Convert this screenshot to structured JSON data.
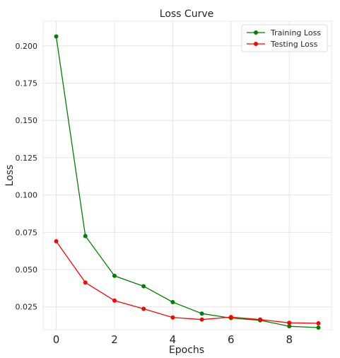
{
  "chart_data": {
    "type": "line",
    "title": "Loss Curve",
    "xlabel": "Epochs",
    "ylabel": "Loss",
    "x": [
      0,
      1,
      2,
      3,
      4,
      5,
      6,
      7,
      8,
      9
    ],
    "xlim": [
      -0.45,
      9.45
    ],
    "ylim": [
      0.0097,
      0.2165
    ],
    "xticks": [
      0,
      2,
      4,
      6,
      8
    ],
    "yticks": [
      0.025,
      0.05,
      0.075,
      0.1,
      0.125,
      0.15,
      0.175,
      0.2
    ],
    "ytick_labels": [
      "0.025",
      "0.050",
      "0.075",
      "0.100",
      "0.125",
      "0.150",
      "0.175",
      "0.200"
    ],
    "grid": true,
    "legend_position": "top-right",
    "series": [
      {
        "name": "Training Loss",
        "color": "#008000",
        "values": [
          0.2063,
          0.0725,
          0.0458,
          0.0388,
          0.0282,
          0.0205,
          0.0175,
          0.016,
          0.012,
          0.0111
        ]
      },
      {
        "name": "Testing Loss",
        "color": "#ff0000",
        "values": [
          0.069,
          0.0413,
          0.0292,
          0.0237,
          0.0179,
          0.0165,
          0.0182,
          0.0165,
          0.0143,
          0.014
        ]
      }
    ]
  }
}
